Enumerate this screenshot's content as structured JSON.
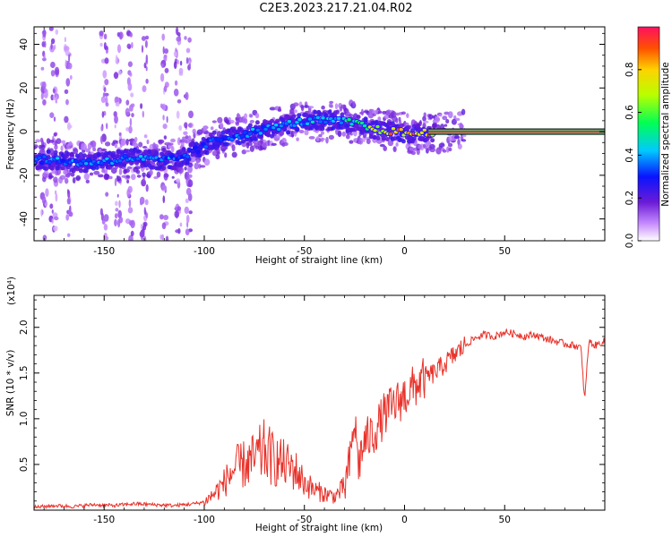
{
  "page": {
    "title": "C2E3.2023.217.21.04.R02"
  },
  "chart_data": [
    {
      "type": "heatmap",
      "title": "C2E3.2023.217.21.04.R02",
      "xlabel": "Height of straight line (km)",
      "ylabel": "Frequency (Hz)",
      "xlim": [
        -185,
        100
      ],
      "ylim": [
        -50,
        48
      ],
      "x_ticks": [
        -150,
        -100,
        -50,
        0,
        50
      ],
      "y_ticks": [
        -40,
        -20,
        0,
        20,
        40
      ],
      "colorbar": {
        "label": "Normalized spectral amplitude",
        "range": [
          0,
          1
        ],
        "ticks": [
          "0.0",
          "0.2",
          "0.4",
          "0.6",
          "0.8"
        ]
      },
      "ridge": [
        {
          "x": -185,
          "y": -13,
          "amp": 0.35
        },
        {
          "x": -175,
          "y": -13,
          "amp": 0.4
        },
        {
          "x": -165,
          "y": -14,
          "amp": 0.4
        },
        {
          "x": -155,
          "y": -14,
          "amp": 0.4
        },
        {
          "x": -145,
          "y": -13,
          "amp": 0.42
        },
        {
          "x": -135,
          "y": -12,
          "amp": 0.42
        },
        {
          "x": -125,
          "y": -13,
          "amp": 0.4
        },
        {
          "x": -115,
          "y": -13,
          "amp": 0.38
        },
        {
          "x": -105,
          "y": -9,
          "amp": 0.3
        },
        {
          "x": -95,
          "y": -4,
          "amp": 0.35
        },
        {
          "x": -85,
          "y": -2,
          "amp": 0.38
        },
        {
          "x": -75,
          "y": 0,
          "amp": 0.4
        },
        {
          "x": -65,
          "y": 2,
          "amp": 0.42
        },
        {
          "x": -55,
          "y": 4,
          "amp": 0.42
        },
        {
          "x": -45,
          "y": 5,
          "amp": 0.45
        },
        {
          "x": -35,
          "y": 5,
          "amp": 0.45
        },
        {
          "x": -25,
          "y": 4,
          "amp": 0.55
        },
        {
          "x": -15,
          "y": 1,
          "amp": 0.75
        },
        {
          "x": -5,
          "y": 0,
          "amp": 0.85
        },
        {
          "x": 5,
          "y": -1,
          "amp": 0.9
        },
        {
          "x": 15,
          "y": 0,
          "amp": 0.95
        },
        {
          "x": 50,
          "y": 0,
          "amp": 0.98
        },
        {
          "x": 95,
          "y": 0,
          "amp": 0.98
        }
      ]
    },
    {
      "type": "line",
      "xlabel": "Height of straight line (km)",
      "ylabel": "SNR (10 * v/v)",
      "scale_label": "(x10⁴)",
      "xlim": [
        -185,
        100
      ],
      "ylim": [
        0,
        2.35
      ],
      "x_ticks": [
        -150,
        -100,
        -50,
        0,
        50
      ],
      "y_ticks": [
        "0.5",
        "1.0",
        "1.5",
        "2.0"
      ],
      "series": [
        {
          "name": "SNR",
          "color": "#e8322a",
          "x": [
            -185,
            -175,
            -165,
            -155,
            -145,
            -135,
            -125,
            -115,
            -105,
            -100,
            -95,
            -90,
            -85,
            -80,
            -75,
            -70,
            -65,
            -60,
            -55,
            -50,
            -45,
            -40,
            -35,
            -30,
            -27,
            -25,
            -23,
            -20,
            -15,
            -10,
            -5,
            0,
            5,
            10,
            15,
            20,
            25,
            30,
            35,
            40,
            45,
            50,
            55,
            60,
            65,
            70,
            75,
            80,
            85,
            88,
            90,
            92,
            95,
            100
          ],
          "y": [
            0.03,
            0.05,
            0.04,
            0.06,
            0.05,
            0.07,
            0.06,
            0.05,
            0.07,
            0.09,
            0.18,
            0.3,
            0.45,
            0.5,
            0.55,
            0.65,
            0.55,
            0.5,
            0.45,
            0.3,
            0.22,
            0.18,
            0.15,
            0.25,
            0.55,
            1.0,
            0.5,
            0.75,
            0.85,
            1.05,
            1.15,
            1.25,
            1.35,
            1.45,
            1.5,
            1.6,
            1.7,
            1.8,
            1.88,
            1.92,
            1.9,
            1.95,
            1.93,
            1.9,
            1.92,
            1.88,
            1.85,
            1.82,
            1.8,
            1.78,
            1.2,
            1.85,
            1.8,
            1.85
          ]
        }
      ]
    }
  ]
}
